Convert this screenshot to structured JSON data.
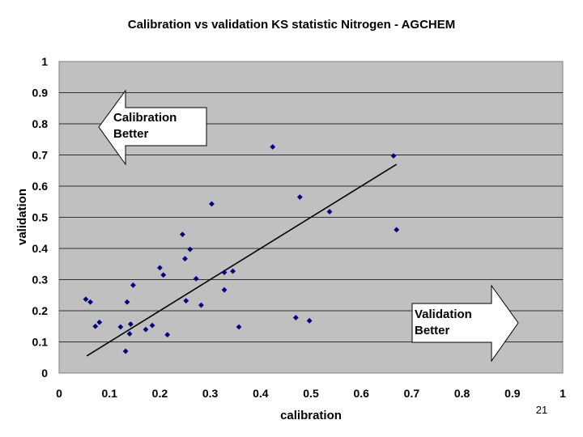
{
  "chart_data": {
    "type": "scatter",
    "title": "Calibration vs validation KS statistic Nitrogen - AGCHEM",
    "xlabel": "calibration",
    "ylabel": "validation",
    "xlim": [
      0,
      1
    ],
    "ylim": [
      0,
      1
    ],
    "x_ticks": [
      "0",
      "0.1",
      "0.2",
      "0.3",
      "0.4",
      "0.5",
      "0.6",
      "0.7",
      "0.8",
      "0.9",
      "1"
    ],
    "y_ticks": [
      "0",
      "0.1",
      "0.2",
      "0.3",
      "0.4",
      "0.5",
      "0.6",
      "0.7",
      "0.8",
      "0.9",
      "1"
    ],
    "grid": "horizontal",
    "plot_background": "#c0c0c0",
    "marker_color": "#000080",
    "points": [
      {
        "x": 0.053,
        "y": 0.237
      },
      {
        "x": 0.062,
        "y": 0.228
      },
      {
        "x": 0.072,
        "y": 0.15
      },
      {
        "x": 0.08,
        "y": 0.163
      },
      {
        "x": 0.122,
        "y": 0.148
      },
      {
        "x": 0.132,
        "y": 0.07
      },
      {
        "x": 0.135,
        "y": 0.228
      },
      {
        "x": 0.14,
        "y": 0.126
      },
      {
        "x": 0.142,
        "y": 0.157
      },
      {
        "x": 0.147,
        "y": 0.282
      },
      {
        "x": 0.172,
        "y": 0.14
      },
      {
        "x": 0.185,
        "y": 0.153
      },
      {
        "x": 0.2,
        "y": 0.338
      },
      {
        "x": 0.207,
        "y": 0.315
      },
      {
        "x": 0.215,
        "y": 0.123
      },
      {
        "x": 0.245,
        "y": 0.445
      },
      {
        "x": 0.25,
        "y": 0.367
      },
      {
        "x": 0.252,
        "y": 0.232
      },
      {
        "x": 0.26,
        "y": 0.397
      },
      {
        "x": 0.272,
        "y": 0.303
      },
      {
        "x": 0.282,
        "y": 0.218
      },
      {
        "x": 0.303,
        "y": 0.543
      },
      {
        "x": 0.328,
        "y": 0.323
      },
      {
        "x": 0.328,
        "y": 0.267
      },
      {
        "x": 0.345,
        "y": 0.327
      },
      {
        "x": 0.357,
        "y": 0.148
      },
      {
        "x": 0.424,
        "y": 0.726
      },
      {
        "x": 0.47,
        "y": 0.178
      },
      {
        "x": 0.478,
        "y": 0.565
      },
      {
        "x": 0.497,
        "y": 0.168
      },
      {
        "x": 0.537,
        "y": 0.518
      },
      {
        "x": 0.664,
        "y": 0.697
      },
      {
        "x": 0.67,
        "y": 0.46
      }
    ],
    "trendline": {
      "x": [
        0.055,
        0.67
      ],
      "y": [
        0.055,
        0.67
      ]
    },
    "annotations": [
      {
        "line1": "Calibration",
        "line2": "Better",
        "arrow": "left"
      },
      {
        "line1": "Validation",
        "line2": "Better",
        "arrow": "right"
      }
    ]
  },
  "slide": {
    "page_number": "21"
  }
}
